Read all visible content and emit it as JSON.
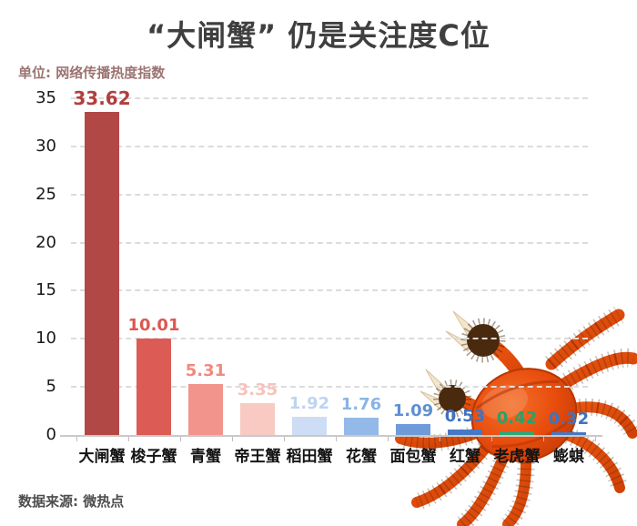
{
  "title": "“大闸蟹” 仍是关注度C位",
  "unit_label": "单位: 网络传播热度指数",
  "source_label": "数据来源: 微热点",
  "chart_data": {
    "type": "bar",
    "title": "“大闸蟹” 仍是关注度C位",
    "ylabel": "网络传播热度指数",
    "xlabel": "",
    "categories": [
      "大闸蟹",
      "梭子蟹",
      "青蟹",
      "帝王蟹",
      "稻田蟹",
      "花蟹",
      "面包蟹",
      "红蟹",
      "老虎蟹",
      "蟛蜞"
    ],
    "values": [
      33.62,
      10.01,
      5.31,
      3.35,
      1.92,
      1.76,
      1.09,
      0.53,
      0.42,
      0.32
    ],
    "bar_colors": [
      "#b24845",
      "#dc5b54",
      "#f2948b",
      "#f8cac1",
      "#cdddf5",
      "#92b9e8",
      "#6e9bd9",
      "#4679c5",
      "#30a676",
      "#4679c5"
    ],
    "value_label_colors": [
      "#b13f3d",
      "#dd5750",
      "#f0897f",
      "#f6c3ba",
      "#bdd4f2",
      "#8ab4e6",
      "#5f90d2",
      "#3f73c1",
      "#2aa06c",
      "#3f73c1"
    ],
    "ylim": [
      0,
      35
    ],
    "yticks": [
      0,
      5,
      10,
      15,
      20,
      25,
      30,
      35
    ],
    "grid": "horizontal-dashed",
    "legend": "none"
  },
  "decoration": {
    "crab_illustration": "cooked hairy crab photo, bottom-right, behind chart layers",
    "crab_body_color": "#e84d0d",
    "crab_claw_color": "#4a2a0e",
    "crab_pincer_tip_color": "#f3e6cc"
  }
}
